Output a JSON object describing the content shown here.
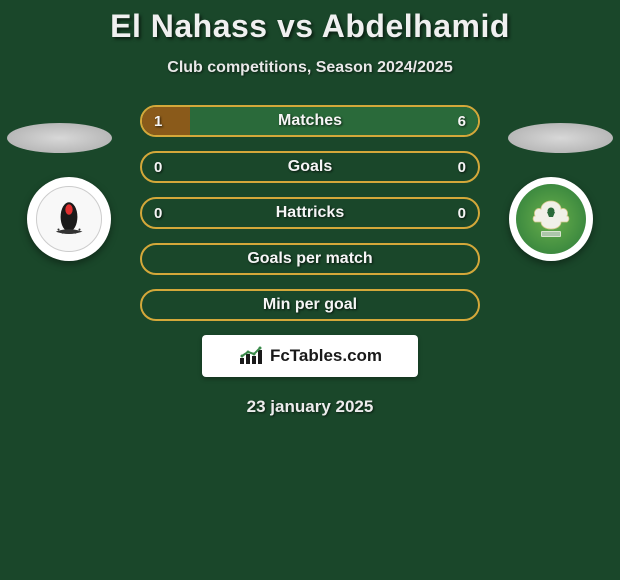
{
  "header": {
    "title": "El Nahass vs Abdelhamid",
    "subtitle": "Club competitions, Season 2024/2025"
  },
  "colors": {
    "background": "#1a472a",
    "bar_border": "#d4a83a",
    "bar_left_fill": "#8a5a1a",
    "bar_right_fill": "#2a6a3a",
    "text_light": "#f0f0f0"
  },
  "stats": [
    {
      "label": "Matches",
      "left_val": "1",
      "right_val": "6",
      "left_pct": 14.3,
      "right_pct": 85.7,
      "show_vals": true
    },
    {
      "label": "Goals",
      "left_val": "0",
      "right_val": "0",
      "left_pct": 0,
      "right_pct": 0,
      "show_vals": true
    },
    {
      "label": "Hattricks",
      "left_val": "0",
      "right_val": "0",
      "left_pct": 0,
      "right_pct": 0,
      "show_vals": true
    },
    {
      "label": "Goals per match",
      "left_val": "",
      "right_val": "",
      "left_pct": 0,
      "right_pct": 0,
      "show_vals": false
    },
    {
      "label": "Min per goal",
      "left_val": "",
      "right_val": "",
      "left_pct": 0,
      "right_pct": 0,
      "show_vals": false
    }
  ],
  "branding": {
    "site_name": "FcTables.com"
  },
  "date": "23 january 2025"
}
